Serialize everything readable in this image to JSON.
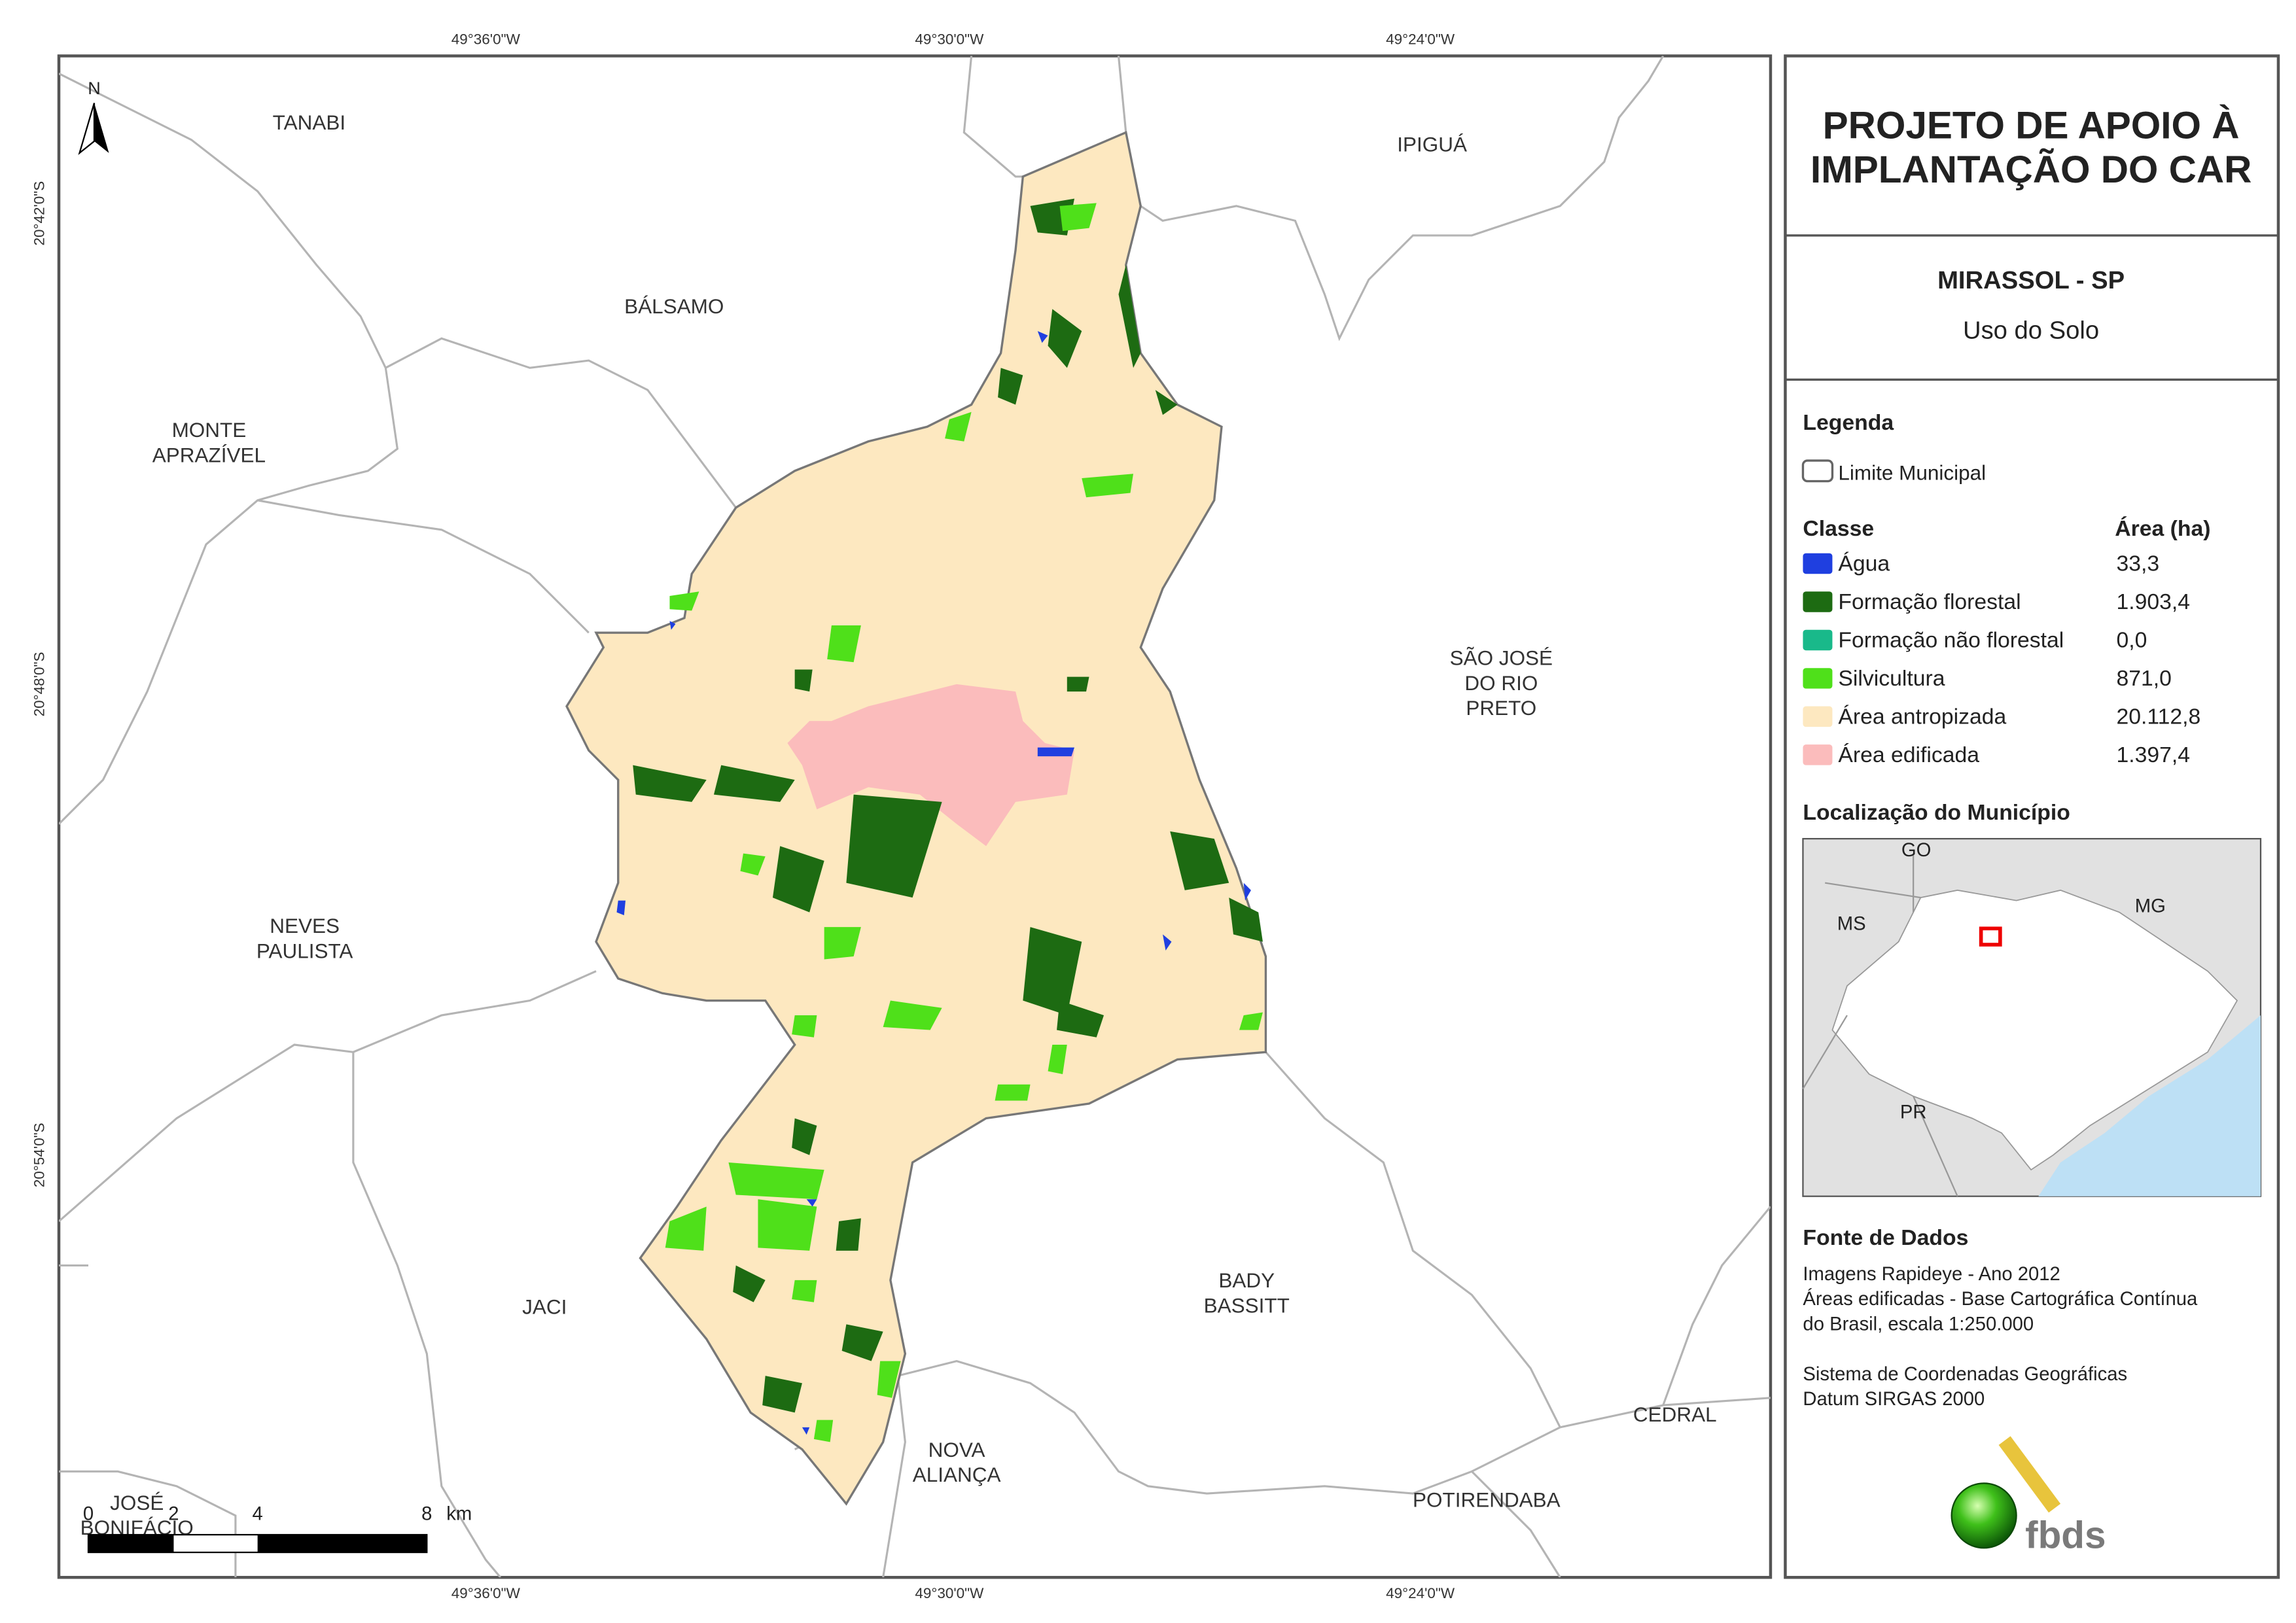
{
  "header": {
    "title_lines": [
      "PROJETO DE APOIO À",
      "IMPLANTAÇÃO DO CAR"
    ],
    "municipality": "MIRASSOL - SP",
    "subtitle": "Uso do Solo"
  },
  "map": {
    "coords_x": [
      "49°36'0\"W",
      "49°30'0\"W",
      "49°24'0\"W"
    ],
    "coords_y": [
      "20°42'0\"S",
      "20°48'0\"S",
      "20°54'0\"S"
    ],
    "north": "N",
    "places": [
      {
        "lines": [
          "TANABI"
        ]
      },
      {
        "lines": [
          "BÁLSAMO"
        ]
      },
      {
        "lines": [
          "IPIGUÁ"
        ]
      },
      {
        "lines": [
          "MONTE",
          "APRAZÍVEL"
        ]
      },
      {
        "lines": [
          "SÃO JOSÉ",
          "DO RIO",
          "PRETO"
        ]
      },
      {
        "lines": [
          "NEVES",
          "PAULISTA"
        ]
      },
      {
        "lines": [
          "JACI"
        ]
      },
      {
        "lines": [
          "BADY",
          "BASSITT"
        ]
      },
      {
        "lines": [
          "NOVA",
          "ALIANÇA"
        ]
      },
      {
        "lines": [
          "CEDRAL"
        ]
      },
      {
        "lines": [
          "POTIRENDABA"
        ]
      },
      {
        "lines": [
          "JOSÉ",
          "BONIFÁCIO"
        ]
      }
    ],
    "scale_labels": [
      "0",
      "2",
      "4",
      "8",
      "km"
    ]
  },
  "legend": {
    "title": "Legenda",
    "boundary": "Limite Municipal",
    "class_header": "Classe",
    "area_header": "Área (ha)",
    "classes": [
      {
        "name": "Água",
        "area": "33,3",
        "color": "#1f3fe0"
      },
      {
        "name": "Formação florestal",
        "area": "1.903,4",
        "color": "#1d6b12"
      },
      {
        "name": "Formação não florestal",
        "area": "0,0",
        "color": "#19b98a"
      },
      {
        "name": "Silvicultura",
        "area": "871,0",
        "color": "#4fe01a"
      },
      {
        "name": "Área antropizada",
        "area": "20.112,8",
        "color": "#fde8c0"
      },
      {
        "name": "Área edificada",
        "area": "1.397,4",
        "color": "#fbbcbc"
      }
    ]
  },
  "location": {
    "title": "Localização do Município",
    "labels": [
      "GO",
      "MS",
      "MG",
      "PR"
    ]
  },
  "sources": {
    "title": "Fonte de Dados",
    "lines": [
      "Imagens Rapideye - Ano 2012",
      "Áreas edificadas - Base Cartográfica Contínua",
      "do Brasil, escala 1:250.000",
      "Sistema de Coordenadas Geográficas",
      "Datum SIRGAS 2000"
    ]
  },
  "logo": "fbds"
}
